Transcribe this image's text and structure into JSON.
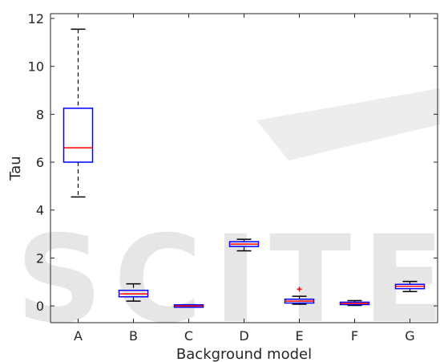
{
  "chart_data": {
    "type": "box",
    "xlabel": "Background model",
    "ylabel": "Tau",
    "categories": [
      "A",
      "B",
      "C",
      "D",
      "E",
      "F",
      "G"
    ],
    "ylim": [
      -0.7,
      12.2
    ],
    "yticks": [
      0,
      2,
      4,
      6,
      8,
      10,
      12
    ],
    "grid": false,
    "boxes": [
      {
        "category": "A",
        "whisker_low": 4.55,
        "q1": 6.0,
        "median": 6.6,
        "q3": 8.25,
        "whisker_high": 11.55,
        "outliers": []
      },
      {
        "category": "B",
        "whisker_low": 0.2,
        "q1": 0.38,
        "median": 0.5,
        "q3": 0.65,
        "whisker_high": 0.92,
        "outliers": []
      },
      {
        "category": "C",
        "whisker_low": -0.05,
        "q1": -0.04,
        "median": 0.0,
        "q3": 0.03,
        "whisker_high": 0.05,
        "outliers": []
      },
      {
        "category": "D",
        "whisker_low": 2.3,
        "q1": 2.48,
        "median": 2.58,
        "q3": 2.68,
        "whisker_high": 2.78,
        "outliers": []
      },
      {
        "category": "E",
        "whisker_low": 0.07,
        "q1": 0.12,
        "median": 0.2,
        "q3": 0.28,
        "whisker_high": 0.4,
        "outliers": [
          0.7
        ]
      },
      {
        "category": "F",
        "whisker_low": 0.02,
        "q1": 0.07,
        "median": 0.1,
        "q3": 0.14,
        "whisker_high": 0.22,
        "outliers": []
      },
      {
        "category": "G",
        "whisker_low": 0.6,
        "q1": 0.72,
        "median": 0.82,
        "q3": 0.9,
        "whisker_high": 1.02,
        "outliers": []
      }
    ],
    "colors": {
      "box": "#0000ff",
      "median": "#ff0000",
      "whisker": "#000000",
      "outlier": "#ff0000",
      "axis": "#262626"
    }
  },
  "watermark": {
    "text": "SCITE"
  }
}
